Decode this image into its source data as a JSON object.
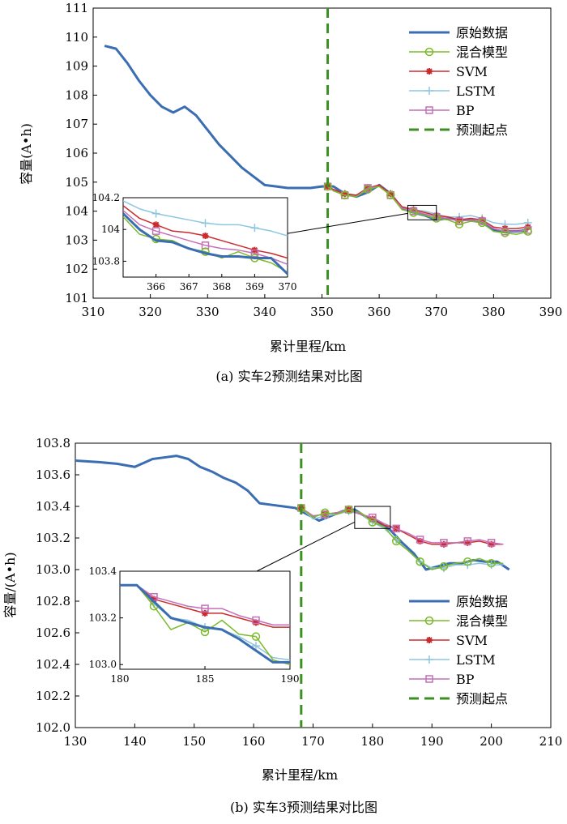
{
  "chart_data": [
    {
      "type": "line",
      "caption": "(a) 实车2预测结果对比图",
      "xlabel": "累计里程/km",
      "ylabel": "容量(A•h)",
      "xlim": [
        310,
        390
      ],
      "ylim": [
        101,
        111
      ],
      "xticks": [
        "310",
        "320",
        "330",
        "340",
        "350",
        "360",
        "370",
        "380",
        "390"
      ],
      "yticks": [
        "101",
        "102",
        "103",
        "104",
        "105",
        "106",
        "107",
        "108",
        "109",
        "110",
        "111"
      ],
      "prediction_start": 351,
      "legend_position": "top-right",
      "legend": [
        "原始数据",
        "混合模型",
        "SVM",
        "LSTM",
        "BP",
        "预测起点"
      ],
      "colors": {
        "原始数据": "#3b6db3",
        "混合模型": "#7cba2a",
        "SVM": "#cc2b2b",
        "LSTM": "#8ec6df",
        "BP": "#c46fb8",
        "预测起点": "#3c8f23"
      },
      "series": [
        {
          "name": "原始数据",
          "x": [
            312,
            314,
            316,
            318,
            320,
            322,
            324,
            326,
            328,
            330,
            332,
            334,
            336,
            338,
            340,
            342,
            344,
            346,
            348,
            350,
            352,
            354,
            356,
            358,
            360,
            362,
            364,
            366,
            368,
            370,
            372,
            374,
            376,
            378,
            380,
            382,
            384,
            386
          ],
          "values": [
            109.7,
            109.6,
            109.1,
            108.5,
            108.0,
            107.6,
            107.4,
            107.6,
            107.3,
            106.8,
            106.3,
            105.9,
            105.5,
            105.2,
            104.9,
            104.85,
            104.8,
            104.8,
            104.8,
            104.85,
            104.85,
            104.6,
            104.5,
            104.65,
            104.9,
            104.6,
            104.1,
            103.95,
            103.85,
            103.7,
            103.75,
            103.7,
            103.7,
            103.6,
            103.35,
            103.3,
            103.3,
            103.35
          ]
        },
        {
          "name": "混合模型",
          "x": [
            351,
            352,
            354,
            356,
            358,
            360,
            362,
            364,
            366,
            368,
            370,
            372,
            374,
            376,
            378,
            380,
            382,
            384,
            386
          ],
          "values": [
            104.85,
            104.7,
            104.55,
            104.5,
            104.75,
            104.85,
            104.55,
            104.05,
            103.95,
            103.85,
            103.75,
            103.7,
            103.55,
            103.65,
            103.6,
            103.3,
            103.25,
            103.2,
            103.3
          ]
        },
        {
          "name": "SVM",
          "x": [
            351,
            352,
            354,
            356,
            358,
            360,
            362,
            364,
            366,
            368,
            370,
            372,
            374,
            376,
            378,
            380,
            382,
            384,
            386
          ],
          "values": [
            104.85,
            104.75,
            104.6,
            104.55,
            104.8,
            104.9,
            104.6,
            104.15,
            104.05,
            103.95,
            103.85,
            103.8,
            103.7,
            103.75,
            103.7,
            103.45,
            103.4,
            103.4,
            103.45
          ]
        },
        {
          "name": "LSTM",
          "x": [
            351,
            352,
            354,
            356,
            358,
            360,
            362,
            364,
            366,
            368,
            370,
            372,
            374,
            376,
            378,
            380,
            382,
            384,
            386
          ],
          "values": [
            104.85,
            104.7,
            104.6,
            104.55,
            104.8,
            104.85,
            104.6,
            104.15,
            104.05,
            104.0,
            103.9,
            103.8,
            103.8,
            103.85,
            103.75,
            103.6,
            103.55,
            103.55,
            103.6
          ]
        },
        {
          "name": "BP",
          "x": [
            351,
            352,
            354,
            356,
            358,
            360,
            362,
            364,
            366,
            368,
            370,
            372,
            374,
            376,
            378,
            380,
            382,
            384,
            386
          ],
          "values": [
            104.85,
            104.7,
            104.55,
            104.5,
            104.8,
            104.85,
            104.55,
            104.1,
            104.0,
            103.9,
            103.8,
            103.75,
            103.65,
            103.7,
            103.65,
            103.4,
            103.3,
            103.3,
            103.35
          ]
        }
      ],
      "inset": {
        "xlim": [
          365,
          370
        ],
        "ylim": [
          103.7,
          104.2
        ],
        "xticks": [
          "366",
          "367",
          "368",
          "369",
          "370"
        ],
        "yticks": [
          "103.8",
          "104",
          "104.2"
        ],
        "zoom_box": {
          "x": [
            365,
            370
          ],
          "y": [
            103.7,
            104.2
          ]
        },
        "series": [
          {
            "name": "原始数据",
            "x": [
              365,
              365.5,
              366,
              366.5,
              367,
              367.5,
              368,
              368.5,
              369,
              369.5,
              370
            ],
            "values": [
              104.1,
              104.0,
              103.93,
              103.92,
              103.88,
              103.85,
              103.83,
              103.83,
              103.82,
              103.82,
              103.72
            ]
          },
          {
            "name": "混合模型",
            "x": [
              365,
              365.5,
              366,
              366.5,
              367,
              367.5,
              368,
              368.5,
              369,
              369.5,
              370
            ],
            "values": [
              104.08,
              103.97,
              103.94,
              103.93,
              103.88,
              103.86,
              103.82,
              103.86,
              103.82,
              103.79,
              103.73
            ]
          },
          {
            "name": "SVM",
            "x": [
              365,
              365.5,
              366,
              366.5,
              367,
              367.5,
              368,
              368.5,
              369,
              369.5,
              370
            ],
            "values": [
              104.15,
              104.07,
              104.03,
              103.99,
              103.98,
              103.96,
              103.93,
              103.9,
              103.87,
              103.85,
              103.82
            ]
          },
          {
            "name": "LSTM",
            "x": [
              365,
              365.5,
              366,
              366.5,
              367,
              367.5,
              368,
              368.5,
              369,
              369.5,
              370
            ],
            "values": [
              104.18,
              104.13,
              104.1,
              104.08,
              104.06,
              104.04,
              104.03,
              104.03,
              104.01,
              103.99,
              103.96
            ]
          },
          {
            "name": "BP",
            "x": [
              365,
              365.5,
              366,
              366.5,
              367,
              367.5,
              368,
              368.5,
              369,
              369.5,
              370
            ],
            "values": [
              104.12,
              104.03,
              103.99,
              103.96,
              103.93,
              103.9,
              103.88,
              103.87,
              103.85,
              103.82,
              103.78
            ]
          }
        ]
      }
    },
    {
      "type": "line",
      "caption": "(b) 实车3预测结果对比图",
      "xlabel": "累计里程/km",
      "ylabel": "容量/(A•h)",
      "xlim": [
        130,
        210
      ],
      "ylim": [
        102.0,
        103.8
      ],
      "xticks": [
        "130",
        "140",
        "150",
        "160",
        "170",
        "180",
        "190",
        "200",
        "210"
      ],
      "yticks": [
        "102.0",
        "102.2",
        "102.4",
        "102.6",
        "102.8",
        "103.0",
        "103.2",
        "103.4",
        "103.6",
        "103.8"
      ],
      "prediction_start": 168,
      "legend_position": "bottom-right",
      "legend": [
        "原始数据",
        "混合模型",
        "SVM",
        "LSTM",
        "BP",
        "预测起点"
      ],
      "colors": {
        "原始数据": "#3b6db3",
        "混合模型": "#7cba2a",
        "SVM": "#cc2b2b",
        "LSTM": "#8ec6df",
        "BP": "#c46fb8",
        "预测起点": "#3c8f23"
      },
      "series": [
        {
          "name": "原始数据",
          "x": [
            130,
            134,
            137,
            140,
            143,
            145,
            147,
            149,
            151,
            153,
            155,
            157,
            159,
            161,
            163,
            165,
            167,
            169,
            171,
            173,
            175,
            177,
            179,
            181,
            183,
            185,
            187,
            189,
            191,
            193,
            195,
            197,
            199,
            201,
            203
          ],
          "values": [
            103.69,
            103.68,
            103.67,
            103.65,
            103.7,
            103.71,
            103.72,
            103.7,
            103.65,
            103.62,
            103.58,
            103.55,
            103.5,
            103.42,
            103.41,
            103.4,
            103.39,
            103.35,
            103.31,
            103.34,
            103.37,
            103.38,
            103.33,
            103.3,
            103.25,
            103.17,
            103.1,
            103.0,
            103.02,
            103.04,
            103.04,
            103.06,
            103.05,
            103.05,
            103.0
          ]
        },
        {
          "name": "混合模型",
          "x": [
            168,
            170,
            172,
            174,
            176,
            178,
            180,
            182,
            184,
            186,
            188,
            190,
            192,
            194,
            196,
            198,
            200,
            202
          ],
          "values": [
            103.39,
            103.33,
            103.36,
            103.35,
            103.38,
            103.36,
            103.3,
            103.27,
            103.18,
            103.12,
            103.05,
            103.0,
            103.02,
            103.04,
            103.05,
            103.07,
            103.04,
            103.04
          ]
        },
        {
          "name": "SVM",
          "x": [
            168,
            170,
            172,
            174,
            176,
            178,
            180,
            182,
            184,
            186,
            188,
            190,
            192,
            194,
            196,
            198,
            200,
            202
          ],
          "values": [
            103.39,
            103.34,
            103.35,
            103.36,
            103.38,
            103.35,
            103.32,
            103.28,
            103.26,
            103.22,
            103.18,
            103.16,
            103.16,
            103.17,
            103.17,
            103.18,
            103.16,
            103.16
          ]
        },
        {
          "name": "LSTM",
          "x": [
            168,
            170,
            172,
            174,
            176,
            178,
            180,
            182,
            184,
            186,
            188,
            190,
            192,
            194,
            196,
            198,
            200,
            202
          ],
          "values": [
            103.39,
            103.32,
            103.34,
            103.35,
            103.37,
            103.35,
            103.3,
            103.26,
            103.19,
            103.12,
            103.05,
            103.01,
            103.01,
            103.03,
            103.03,
            103.04,
            103.03,
            103.03
          ]
        },
        {
          "name": "BP",
          "x": [
            168,
            170,
            172,
            174,
            176,
            178,
            180,
            182,
            184,
            186,
            188,
            190,
            192,
            194,
            196,
            198,
            200,
            202
          ],
          "values": [
            103.39,
            103.34,
            103.35,
            103.36,
            103.38,
            103.35,
            103.33,
            103.29,
            103.26,
            103.23,
            103.19,
            103.17,
            103.17,
            103.17,
            103.18,
            103.19,
            103.17,
            103.16
          ]
        }
      ],
      "inset": {
        "xlim": [
          180,
          190
        ],
        "ylim": [
          102.98,
          103.4
        ],
        "xticks": [
          "180",
          "185",
          "190"
        ],
        "yticks": [
          "103.0",
          "103.2",
          "103.4"
        ],
        "zoom_box": {
          "x": [
            177,
            183
          ],
          "y": [
            103.26,
            103.4
          ]
        },
        "series": [
          {
            "name": "原始数据",
            "x": [
              180,
              181,
              182,
              183,
              184,
              185,
              186,
              187,
              188,
              189,
              190
            ],
            "values": [
              103.34,
              103.34,
              103.27,
              103.2,
              103.18,
              103.16,
              103.15,
              103.11,
              103.06,
              103.01,
              103.01
            ]
          },
          {
            "name": "混合模型",
            "x": [
              180,
              181,
              182,
              183,
              184,
              185,
              186,
              187,
              188,
              189,
              190
            ],
            "values": [
              103.34,
              103.34,
              103.25,
              103.15,
              103.18,
              103.14,
              103.19,
              103.13,
              103.12,
              103.02,
              103.0
            ]
          },
          {
            "name": "SVM",
            "x": [
              180,
              181,
              182,
              183,
              184,
              185,
              186,
              187,
              188,
              189,
              190
            ],
            "values": [
              103.34,
              103.34,
              103.28,
              103.26,
              103.24,
              103.22,
              103.22,
              103.2,
              103.18,
              103.16,
              103.16
            ]
          },
          {
            "name": "LSTM",
            "x": [
              180,
              181,
              182,
              183,
              184,
              185,
              186,
              187,
              188,
              189,
              190
            ],
            "values": [
              103.34,
              103.34,
              103.26,
              103.2,
              103.19,
              103.16,
              103.15,
              103.12,
              103.08,
              103.03,
              103.02
            ]
          },
          {
            "name": "BP",
            "x": [
              180,
              181,
              182,
              183,
              184,
              185,
              186,
              187,
              188,
              189,
              190
            ],
            "values": [
              103.34,
              103.34,
              103.29,
              103.27,
              103.25,
              103.24,
              103.24,
              103.21,
              103.19,
              103.17,
              103.17
            ]
          }
        ]
      }
    }
  ]
}
